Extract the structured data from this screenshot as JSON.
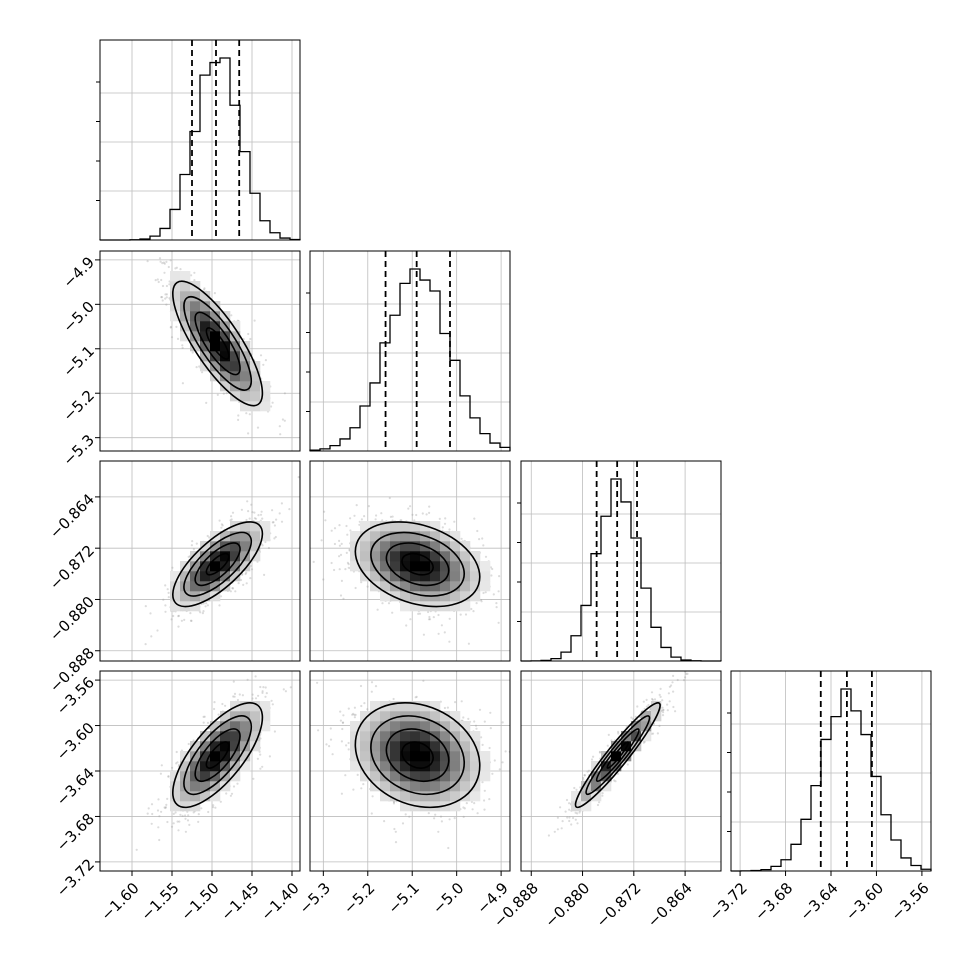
{
  "chart_data": {
    "type": "corner",
    "grid": true,
    "parameters": [
      {
        "index": 0,
        "range": [
          -1.64,
          -1.39
        ],
        "ticks": [
          -1.6,
          -1.55,
          -1.5,
          -1.45,
          -1.4
        ],
        "tick_labels": [
          "−1.60",
          "−1.55",
          "−1.50",
          "−1.45",
          "−1.40"
        ],
        "quantiles": [
          -1.525,
          -1.495,
          -1.466
        ],
        "mean": -1.493,
        "sd": 0.028
      },
      {
        "index": 1,
        "range": [
          -5.33,
          -4.88
        ],
        "ticks": [
          -5.3,
          -5.2,
          -5.1,
          -5.0,
          -4.9
        ],
        "tick_labels": [
          "−5.3",
          "−5.2",
          "−5.1",
          "−5.0",
          "−4.9"
        ],
        "quantiles": [
          -5.16,
          -5.09,
          -5.015
        ],
        "mean": -5.088,
        "sd": 0.07
      },
      {
        "index": 2,
        "range": [
          -0.8896,
          -0.8584
        ],
        "ticks": [
          -0.888,
          -0.88,
          -0.872,
          -0.864
        ],
        "tick_labels": [
          "−0.888",
          "−0.880",
          "−0.872",
          "−0.864"
        ],
        "quantiles": [
          -0.8778,
          -0.8746,
          -0.8715
        ],
        "mean": -0.8745,
        "sd": 0.0033
      },
      {
        "index": 3,
        "range": [
          -3.728,
          -3.552
        ],
        "ticks": [
          -3.72,
          -3.68,
          -3.64,
          -3.6,
          -3.56
        ],
        "tick_labels": [
          "−3.72",
          "−3.68",
          "−3.64",
          "−3.60",
          "−3.56"
        ],
        "quantiles": [
          -3.649,
          -3.626,
          -3.604
        ],
        "mean": -3.626,
        "sd": 0.023
      }
    ],
    "correlations": {
      "1-0": -0.8,
      "2-0": 0.72,
      "2-1": -0.3,
      "3-0": 0.72,
      "3-1": -0.2,
      "3-2": 0.95
    },
    "histogram_bins": 20,
    "contour_levels": 3
  }
}
